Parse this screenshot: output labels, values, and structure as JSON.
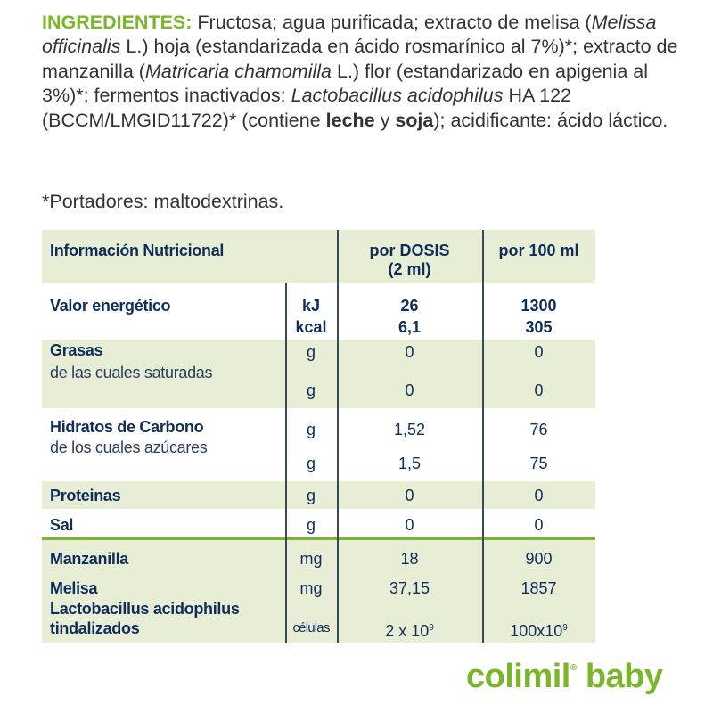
{
  "ingredients": {
    "heading": "INGREDIENTES:",
    "t1": " Fructosa; agua purificada; extracto de melisa (",
    "i1": "Melissa officinalis",
    "t2": " L.) hoja (estandarizada en ácido rosmarínico al 7%)*; extracto de manzanilla (",
    "i2": "Matricaria chamomilla",
    "t3": " L.) flor (estandarizado en apigenia al 3%)*; fermentos inactivados: ",
    "i3": "Lactobacillus acidophilus",
    "t4": " HA 122 (BCCM/LMGID11722)* (contiene ",
    "b1": "leche",
    "t5": " y ",
    "b2": "soja",
    "t6": "); acidificante: ácido láctico."
  },
  "carriers": "*Portadores: maltodextrinas.",
  "table": {
    "header": {
      "title": "Información Nutricional",
      "dose": "por DOSIS",
      "dose_sub": "(2 ml)",
      "per100": "por 100 ml"
    },
    "energy": {
      "label": "Valor energético",
      "u1": "kJ",
      "u2": "kcal",
      "d1": "26",
      "d2": "6,1",
      "p1": "1300",
      "p2": "305"
    },
    "fat": {
      "label": "Grasas",
      "sub": "de las cuales saturadas",
      "u": "g",
      "d": "0",
      "p": "0",
      "su": "g",
      "sd": "0",
      "sp": "0"
    },
    "carbs": {
      "label": "Hidratos de Carbono",
      "sub": "de los cuales azúcares",
      "u": "g",
      "d": "1,52",
      "p": "76",
      "su": "g",
      "sd": "1,5",
      "sp": "75"
    },
    "protein": {
      "label": "Proteinas",
      "u": "g",
      "d": "0",
      "p": "0"
    },
    "salt": {
      "label": "Sal",
      "u": "g",
      "d": "0",
      "p": "0"
    },
    "chamomile": {
      "label": "Manzanilla",
      "u": "mg",
      "d": "18",
      "p": "900"
    },
    "melissa": {
      "label": "Melisa",
      "u": "mg",
      "d": "37,15",
      "p": "1857"
    },
    "lacto": {
      "label1": "Lactobacillus acidophilus",
      "label2": "tindalizados",
      "u": "células",
      "d": "2 x 10",
      "d_exp": "9",
      "p": "100x10",
      "p_exp": "9"
    }
  },
  "logo": {
    "brand": "colimil",
    "reg": "®",
    "suffix": "baby"
  },
  "colors": {
    "accent_green": "#7ab52a",
    "navy": "#0f2d5a",
    "row_green": "#e8eed6"
  }
}
